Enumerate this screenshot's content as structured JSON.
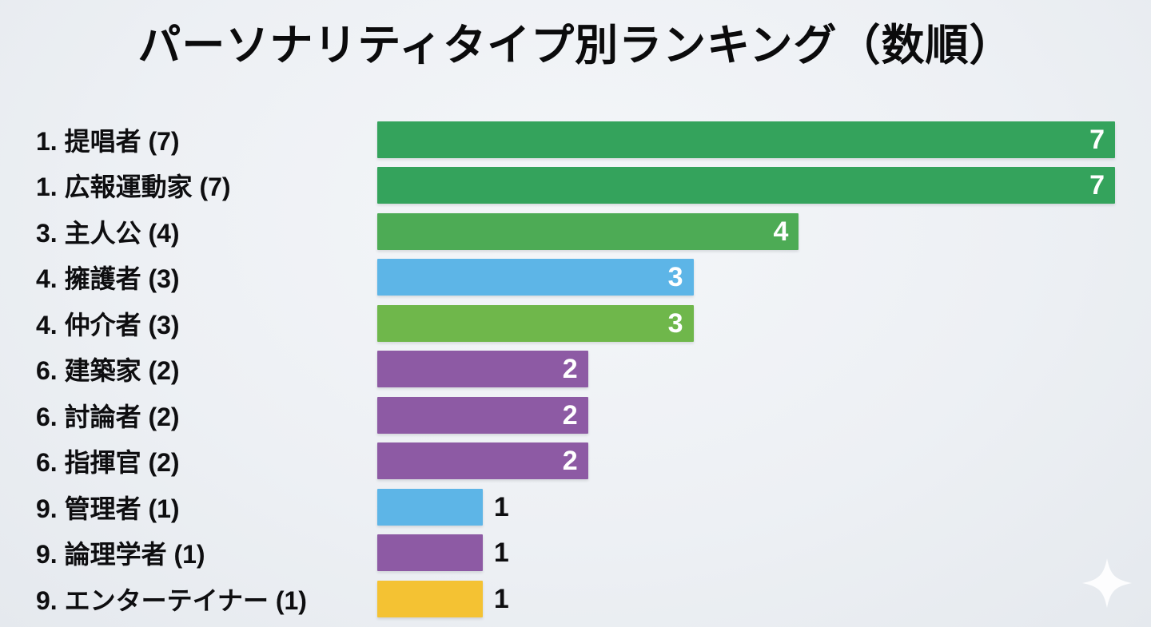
{
  "title": "パーソナリティタイプ別ランキング（数順）",
  "background_color": "#eef1f4",
  "text_color": "#0e0e10",
  "value_label_inside_color": "#ffffff",
  "value_label_outside_color": "#0e0e10",
  "palette": {
    "green_dark": "#34a35c",
    "green_mid": "#4dab55",
    "green_light": "#6fb74b",
    "sky_blue": "#5db5e7",
    "purple": "#8d5aa4",
    "yellow": "#f4c233"
  },
  "decoration": {
    "sparkle_icon": "four-point-star",
    "sparkle_color": "#ffffff"
  },
  "chart_data": {
    "type": "bar",
    "orientation": "horizontal",
    "title": "パーソナリティタイプ別ランキング（数順）",
    "xlabel": "",
    "ylabel": "",
    "xlim": [
      0,
      7
    ],
    "grid": false,
    "legend": "none",
    "categories": [
      "1. 提唱者 (7)",
      "1. 広報運動家 (7)",
      "3. 主人公 (4)",
      "4. 擁護者 (3)",
      "4. 仲介者 (3)",
      "6. 建築家 (2)",
      "6. 討論者 (2)",
      "6. 指揮官 (2)",
      "9. 管理者 (1)",
      "9. 論理学者 (1)",
      "9. エンターテイナー (1)"
    ],
    "values": [
      7,
      7,
      4,
      3,
      3,
      2,
      2,
      2,
      1,
      1,
      1
    ],
    "rows": [
      {
        "label": "1. 提唱者 (7)",
        "value": 7,
        "value_label": "7",
        "color": "#34a35c",
        "label_inside": true
      },
      {
        "label": "1. 広報運動家 (7)",
        "value": 7,
        "value_label": "7",
        "color": "#34a35c",
        "label_inside": true
      },
      {
        "label": "3. 主人公 (4)",
        "value": 4,
        "value_label": "4",
        "color": "#4dab55",
        "label_inside": true
      },
      {
        "label": "4. 擁護者 (3)",
        "value": 3,
        "value_label": "3",
        "color": "#5db5e7",
        "label_inside": true
      },
      {
        "label": "4. 仲介者 (3)",
        "value": 3,
        "value_label": "3",
        "color": "#6fb74b",
        "label_inside": true
      },
      {
        "label": "6. 建築家 (2)",
        "value": 2,
        "value_label": "2",
        "color": "#8d5aa4",
        "label_inside": true
      },
      {
        "label": "6. 討論者 (2)",
        "value": 2,
        "value_label": "2",
        "color": "#8d5aa4",
        "label_inside": true
      },
      {
        "label": "6. 指揮官 (2)",
        "value": 2,
        "value_label": "2",
        "color": "#8d5aa4",
        "label_inside": true
      },
      {
        "label": "9. 管理者 (1)",
        "value": 1,
        "value_label": "1",
        "color": "#5db5e7",
        "label_inside": false
      },
      {
        "label": "9. 論理学者 (1)",
        "value": 1,
        "value_label": "1",
        "color": "#8d5aa4",
        "label_inside": false
      },
      {
        "label": "9. エンターテイナー (1)",
        "value": 1,
        "value_label": "1",
        "color": "#f4c233",
        "label_inside": false
      }
    ]
  }
}
